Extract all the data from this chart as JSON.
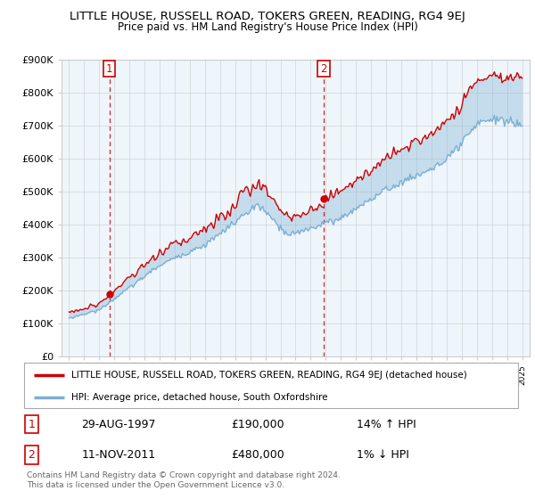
{
  "title": "LITTLE HOUSE, RUSSELL ROAD, TOKERS GREEN, READING, RG4 9EJ",
  "subtitle": "Price paid vs. HM Land Registry's House Price Index (HPI)",
  "legend_line1": "LITTLE HOUSE, RUSSELL ROAD, TOKERS GREEN, READING, RG4 9EJ (detached house)",
  "legend_line2": "HPI: Average price, detached house, South Oxfordshire",
  "footer": "Contains HM Land Registry data © Crown copyright and database right 2024.\nThis data is licensed under the Open Government Licence v3.0.",
  "sale1_label": "1",
  "sale1_date": "29-AUG-1997",
  "sale1_price": 190000,
  "sale1_hpi": "14% ↑ HPI",
  "sale2_label": "2",
  "sale2_date": "11-NOV-2011",
  "sale2_price": 480000,
  "sale2_hpi": "1% ↓ HPI",
  "sale1_x": 1997.66,
  "sale2_x": 2011.87,
  "ylim_min": 0,
  "ylim_max": 900000,
  "xlim_min": 1994.5,
  "xlim_max": 2025.5,
  "red_color": "#cc0000",
  "blue_color": "#7bafd4",
  "fill_color": "#ddeeff",
  "grid_color": "#cccccc",
  "bg_color": "#ffffff",
  "plot_bg": "#eef5fb"
}
